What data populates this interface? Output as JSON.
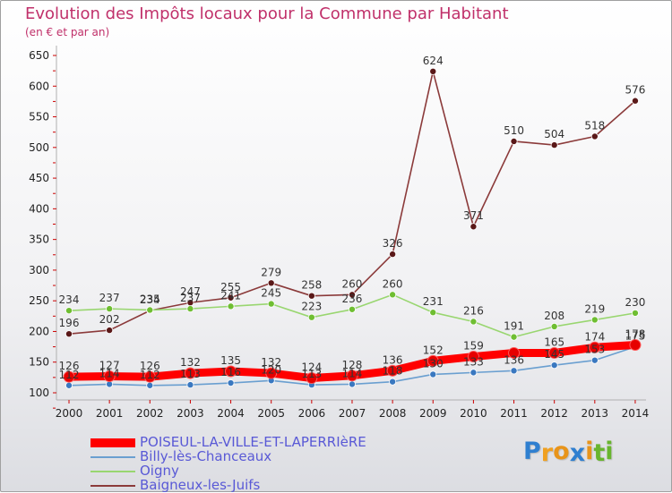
{
  "title": "Evolution des Impôts locaux pour la Commune par Habitant",
  "subtitle": "(en € et par an)",
  "logo": {
    "letters": [
      "P",
      "r",
      "o",
      "x",
      "i",
      "t",
      "i"
    ],
    "colors": [
      "#2f7fd0",
      "#f0a020",
      "#e8941a",
      "#2f7fd0",
      "#e8941a",
      "#68b52e",
      "#68b52e"
    ]
  },
  "chart_data": {
    "type": "line",
    "x": [
      "2000",
      "2001",
      "2002",
      "2003",
      "2004",
      "2005",
      "2006",
      "2007",
      "2008",
      "2009",
      "2010",
      "2011",
      "2012",
      "2013",
      "2014"
    ],
    "yticks": [
      "100",
      "150",
      "200",
      "250",
      "300",
      "350",
      "400",
      "450",
      "500",
      "550",
      "600",
      "650"
    ],
    "ylim": [
      100,
      650
    ],
    "grid": false,
    "legend_position": "bottom-left",
    "series": [
      {
        "name": "POISEUL-LA-VILLE-ET-LAPERRIèRE",
        "color": "#ff0000",
        "marker": "#e60000",
        "values": [
          126,
          127,
          126,
          132,
          135,
          132,
          124,
          128,
          136,
          152,
          159,
          165,
          165,
          174,
          178
        ],
        "labels": [
          "126",
          "127",
          "126",
          "132",
          "135",
          "132",
          "124",
          "128",
          "136",
          "152",
          "159",
          "",
          "165",
          "174",
          "178"
        ]
      },
      {
        "name": "Billy-lès-Chanceaux",
        "color": "#6a9fd0",
        "marker": "#3a78c0",
        "values": [
          112,
          114,
          112,
          113,
          116,
          120,
          113,
          114,
          118,
          130,
          133,
          136,
          145,
          153,
          175
        ],
        "labels": [
          "112",
          "114",
          "112",
          "113",
          "116",
          "120",
          "113",
          "114",
          "118",
          "130",
          "133",
          "136",
          "145",
          "153",
          "175"
        ]
      },
      {
        "name": "Oigny",
        "color": "#99d670",
        "marker": "#6fbe32",
        "values": [
          234,
          237,
          235,
          237,
          241,
          245,
          223,
          236,
          260,
          231,
          216,
          191,
          208,
          219,
          230
        ],
        "labels": [
          "234",
          "237",
          "235",
          "237",
          "241",
          "245",
          "223",
          "236",
          "260",
          "231",
          "216",
          "191",
          "208",
          "219",
          "230"
        ]
      },
      {
        "name": "Baigneux-les-Juifs",
        "color": "#8b3a3a",
        "marker": "#5a1818",
        "values": [
          196,
          202,
          234,
          247,
          255,
          279,
          258,
          260,
          326,
          624,
          371,
          510,
          504,
          518,
          576
        ],
        "labels": [
          "196",
          "202",
          "234",
          "247",
          "255",
          "279",
          "258",
          "260",
          "326",
          "624",
          "371",
          "510",
          "504",
          "518",
          "576"
        ]
      }
    ]
  }
}
